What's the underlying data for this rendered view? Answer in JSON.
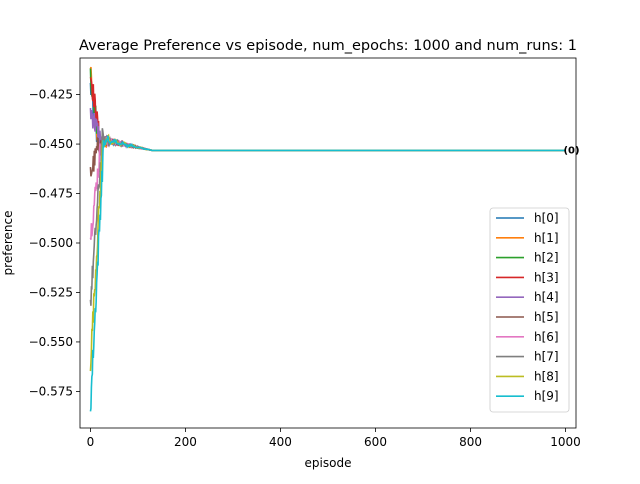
{
  "chart_data": {
    "type": "line",
    "title": "Average Preference vs episode, num_epochs: 1000 and num_runs: 1",
    "xlabel": "episode",
    "ylabel": "preference",
    "xlim": [
      -22,
      1022
    ],
    "ylim": [
      -0.5935,
      -0.4065
    ],
    "xticks": [
      0,
      200,
      400,
      600,
      800,
      1000
    ],
    "yticks": [
      -0.575,
      -0.55,
      -0.525,
      -0.5,
      -0.475,
      -0.45,
      -0.425
    ],
    "ytick_labels": [
      "−0.575",
      "−0.550",
      "−0.525",
      "−0.500",
      "−0.475",
      "−0.450",
      "−0.425"
    ],
    "grid": false,
    "legend_position": "lower right",
    "final_value": -0.4532,
    "end_annotation": "(0)",
    "series": [
      {
        "name": "h[0]",
        "color": "#1f77b4",
        "start": -0.421
      },
      {
        "name": "h[1]",
        "color": "#ff7f0e",
        "start": -0.414
      },
      {
        "name": "h[2]",
        "color": "#2ca02c",
        "start": -0.415
      },
      {
        "name": "h[3]",
        "color": "#d62728",
        "start": -0.414
      },
      {
        "name": "h[4]",
        "color": "#9467bd",
        "start": -0.433
      },
      {
        "name": "h[5]",
        "color": "#8c564b",
        "start": -0.465
      },
      {
        "name": "h[6]",
        "color": "#e377c2",
        "start": -0.497
      },
      {
        "name": "h[7]",
        "color": "#7f7f7f",
        "start": -0.53
      },
      {
        "name": "h[8]",
        "color": "#bcbd22",
        "start": -0.56
      },
      {
        "name": "h[9]",
        "color": "#17becf",
        "start": -0.583
      }
    ]
  }
}
